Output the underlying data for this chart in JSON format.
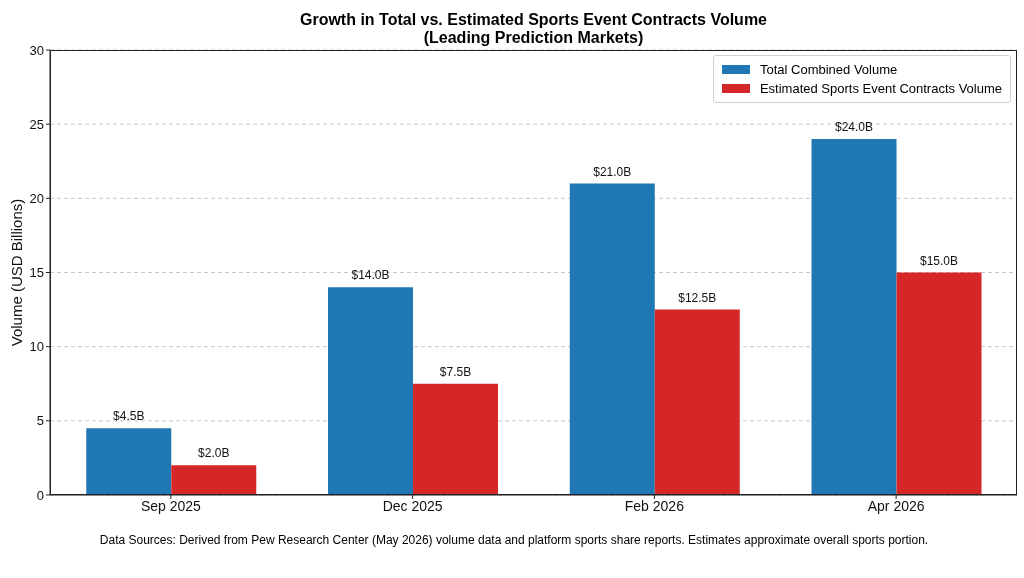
{
  "chart_data": {
    "type": "bar",
    "title": "Growth in Total vs. Estimated Sports Event Contracts Volume\n(Leading Prediction Markets)",
    "categories": [
      "Sep 2025",
      "Dec 2025",
      "Feb 2026",
      "Apr 2026"
    ],
    "series": [
      {
        "name": "Total Combined Volume",
        "color": "#1f77b4",
        "values": [
          4.5,
          14,
          21,
          24
        ],
        "value_labels": [
          "$4.5B",
          "$14.0B",
          "$21.0B",
          "$24.0B"
        ]
      },
      {
        "name": "Estimated Sports Event Contracts Volume",
        "color": "#d62728",
        "values": [
          2,
          7.5,
          12.5,
          15
        ],
        "value_labels": [
          "$2.0B",
          "$7.5B",
          "$12.5B",
          "$15.0B"
        ]
      }
    ],
    "ylabel": "Volume (USD Billions)",
    "ylim": [
      0,
      30
    ],
    "yticks": [
      0,
      5,
      10,
      15,
      20,
      25,
      30
    ],
    "grid": "y",
    "legend": "top right",
    "annotations": [
      "Data Sources: Derived from Pew Research Center (May 2026) volume data and platform sports share reports. Estimates approximate overall sports portion."
    ]
  }
}
